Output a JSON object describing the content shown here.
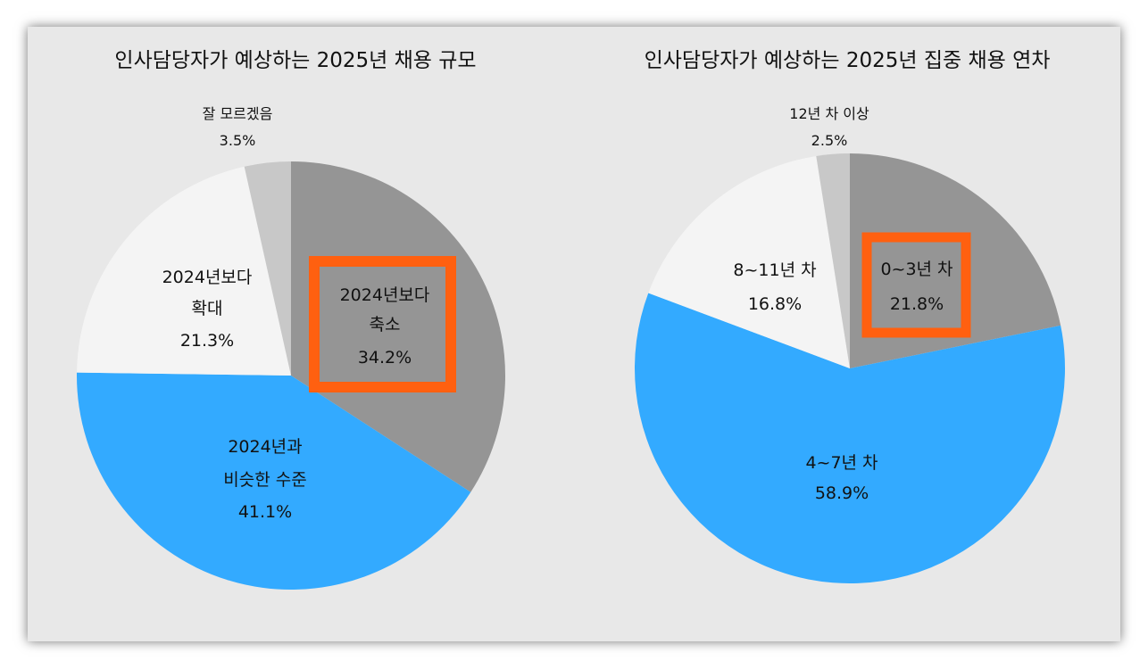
{
  "chart_data": [
    {
      "type": "pie",
      "title": "인사담당자가 예상하는 2025년 채용 규모",
      "start": "top",
      "direction": "clockwise",
      "slices": [
        {
          "label_lines": [
            "2024년보다",
            "축소"
          ],
          "value": 34.2,
          "value_label": "34.2%",
          "color": "#959595",
          "highlighted": true
        },
        {
          "label_lines": [
            "2024년과",
            "비슷한 수준"
          ],
          "value": 41.1,
          "value_label": "41.1%",
          "color": "#33aaff",
          "highlighted": false
        },
        {
          "label_lines": [
            "2024년보다",
            "확대"
          ],
          "value": 21.3,
          "value_label": "21.3%",
          "color": "#f4f4f4",
          "highlighted": false
        },
        {
          "label_lines": [
            "잘 모르겠음"
          ],
          "value": 3.5,
          "value_label": "3.5%",
          "color": "#c8c8c8",
          "highlighted": false
        }
      ]
    },
    {
      "type": "pie",
      "title": "인사담당자가 예상하는 2025년 집중 채용 연차",
      "start": "top",
      "direction": "clockwise",
      "slices": [
        {
          "label_lines": [
            "0~3년 차"
          ],
          "value": 21.8,
          "value_label": "21.8%",
          "color": "#959595",
          "highlighted": true
        },
        {
          "label_lines": [
            "4~7년 차"
          ],
          "value": 58.9,
          "value_label": "58.9%",
          "color": "#33aaff",
          "highlighted": false
        },
        {
          "label_lines": [
            "8~11년 차"
          ],
          "value": 16.8,
          "value_label": "16.8%",
          "color": "#f4f4f4",
          "highlighted": false
        },
        {
          "label_lines": [
            "12년 차 이상"
          ],
          "value": 2.5,
          "value_label": "2.5%",
          "color": "#c8c8c8",
          "highlighted": false
        }
      ]
    }
  ],
  "highlight_color": "#ff6010"
}
